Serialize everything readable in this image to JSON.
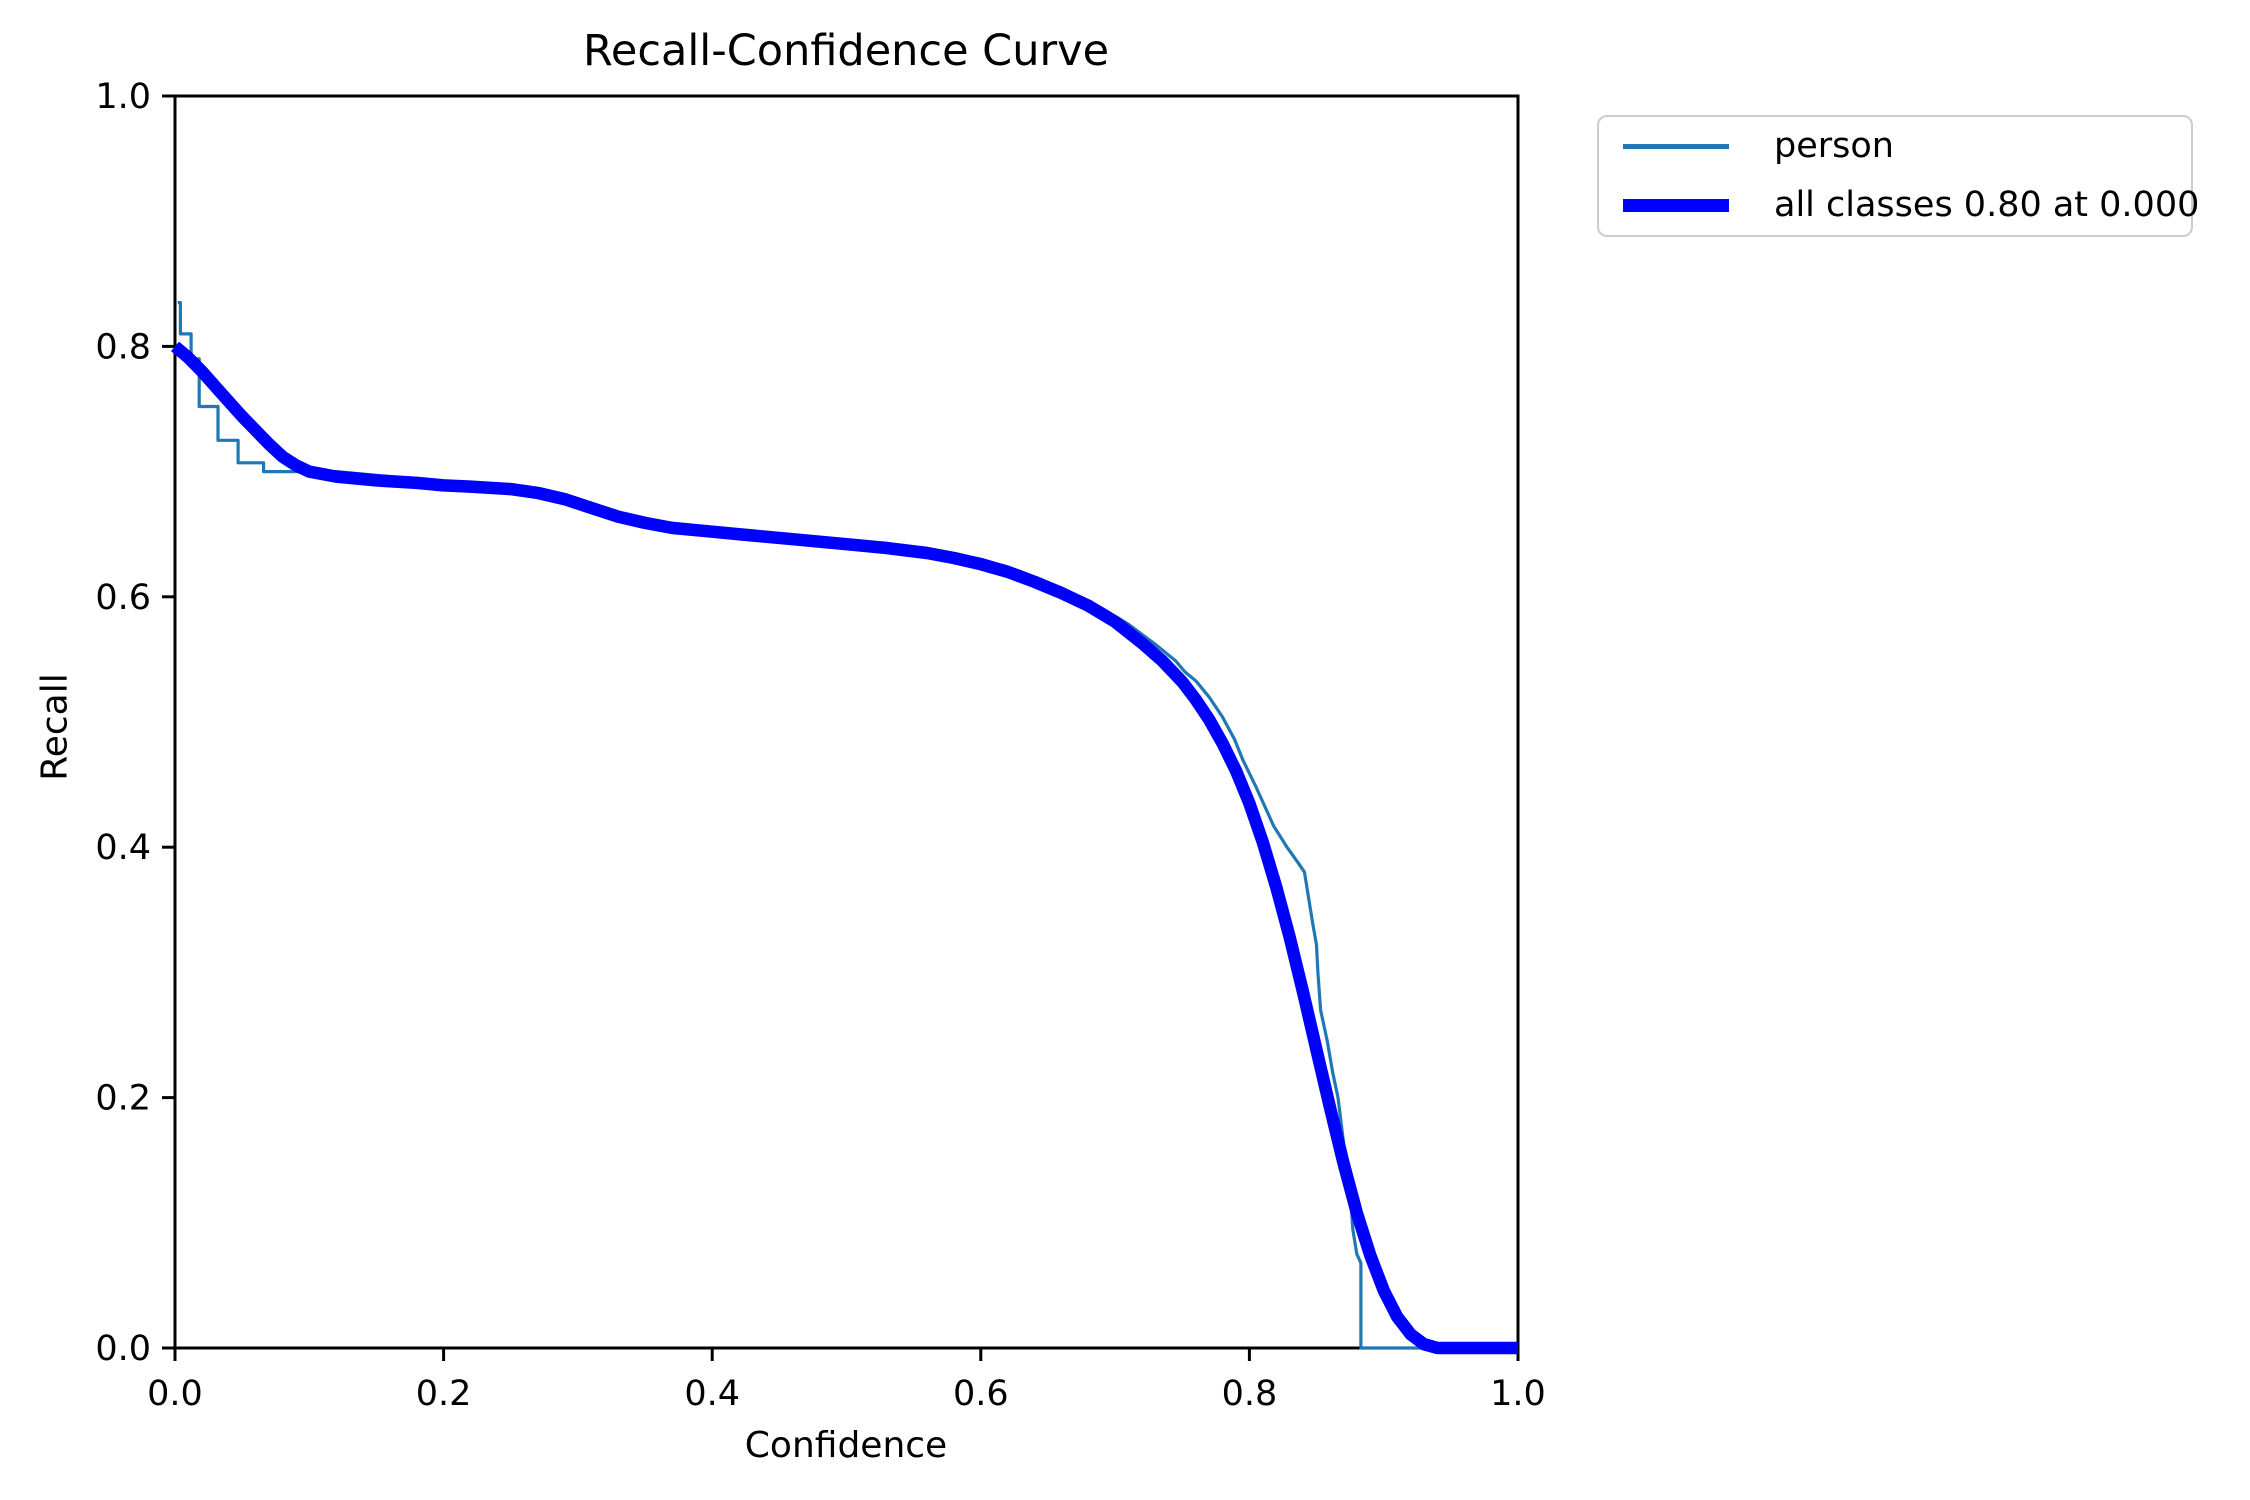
{
  "figure": {
    "title": "Recall-Confidence Curve",
    "xlabel": "Confidence",
    "ylabel": "Recall"
  },
  "chart_data": {
    "type": "line",
    "title": "Recall-Confidence Curve",
    "xlabel": "Confidence",
    "ylabel": "Recall",
    "xlim": [
      0.0,
      1.0
    ],
    "ylim": [
      0.0,
      1.0
    ],
    "x_ticks": [
      0.0,
      0.2,
      0.4,
      0.6,
      0.8,
      1.0
    ],
    "y_ticks": [
      0.0,
      0.2,
      0.4,
      0.6,
      0.8,
      1.0
    ],
    "grid": false,
    "legend_position": "outside upper right",
    "series": [
      {
        "name": "person",
        "color": "#1f77b4",
        "linewidth": "thin",
        "points": [
          [
            0.002,
            0.835
          ],
          [
            0.004,
            0.835
          ],
          [
            0.004,
            0.81
          ],
          [
            0.012,
            0.81
          ],
          [
            0.012,
            0.79
          ],
          [
            0.018,
            0.79
          ],
          [
            0.018,
            0.752
          ],
          [
            0.032,
            0.752
          ],
          [
            0.032,
            0.725
          ],
          [
            0.047,
            0.725
          ],
          [
            0.047,
            0.707
          ],
          [
            0.066,
            0.707
          ],
          [
            0.066,
            0.7
          ],
          [
            0.12,
            0.7
          ],
          [
            0.16,
            0.696
          ],
          [
            0.2,
            0.69
          ],
          [
            0.25,
            0.684
          ],
          [
            0.3,
            0.672
          ],
          [
            0.34,
            0.66
          ],
          [
            0.38,
            0.653
          ],
          [
            0.43,
            0.648
          ],
          [
            0.48,
            0.643
          ],
          [
            0.53,
            0.639
          ],
          [
            0.57,
            0.636
          ],
          [
            0.6,
            0.63
          ],
          [
            0.63,
            0.62
          ],
          [
            0.66,
            0.607
          ],
          [
            0.69,
            0.591
          ],
          [
            0.71,
            0.578
          ],
          [
            0.73,
            0.562
          ],
          [
            0.745,
            0.549
          ],
          [
            0.752,
            0.54
          ],
          [
            0.76,
            0.533
          ],
          [
            0.77,
            0.52
          ],
          [
            0.78,
            0.504
          ],
          [
            0.789,
            0.486
          ],
          [
            0.795,
            0.47
          ],
          [
            0.805,
            0.448
          ],
          [
            0.818,
            0.417
          ],
          [
            0.828,
            0.4
          ],
          [
            0.836,
            0.388
          ],
          [
            0.841,
            0.38
          ],
          [
            0.844,
            0.36
          ],
          [
            0.847,
            0.34
          ],
          [
            0.85,
            0.322
          ],
          [
            0.851,
            0.3
          ],
          [
            0.853,
            0.27
          ],
          [
            0.858,
            0.245
          ],
          [
            0.862,
            0.22
          ],
          [
            0.866,
            0.2
          ],
          [
            0.87,
            0.165
          ],
          [
            0.873,
            0.135
          ],
          [
            0.876,
            0.11
          ],
          [
            0.877,
            0.095
          ],
          [
            0.88,
            0.075
          ],
          [
            0.883,
            0.068
          ],
          [
            0.883,
            0.0
          ],
          [
            1.0,
            0.0
          ]
        ]
      },
      {
        "name": "all classes 0.80 at 0.000",
        "color": "#0000ff",
        "linewidth": "thick",
        "points": [
          [
            0.0,
            0.8
          ],
          [
            0.01,
            0.791
          ],
          [
            0.02,
            0.78
          ],
          [
            0.03,
            0.768
          ],
          [
            0.04,
            0.756
          ],
          [
            0.05,
            0.744
          ],
          [
            0.06,
            0.733
          ],
          [
            0.07,
            0.722
          ],
          [
            0.08,
            0.712
          ],
          [
            0.09,
            0.705
          ],
          [
            0.1,
            0.7
          ],
          [
            0.12,
            0.696
          ],
          [
            0.15,
            0.693
          ],
          [
            0.18,
            0.691
          ],
          [
            0.2,
            0.689
          ],
          [
            0.22,
            0.688
          ],
          [
            0.25,
            0.686
          ],
          [
            0.27,
            0.683
          ],
          [
            0.29,
            0.678
          ],
          [
            0.31,
            0.671
          ],
          [
            0.33,
            0.664
          ],
          [
            0.35,
            0.659
          ],
          [
            0.37,
            0.655
          ],
          [
            0.4,
            0.652
          ],
          [
            0.43,
            0.649
          ],
          [
            0.46,
            0.646
          ],
          [
            0.5,
            0.642
          ],
          [
            0.53,
            0.639
          ],
          [
            0.56,
            0.635
          ],
          [
            0.58,
            0.631
          ],
          [
            0.6,
            0.626
          ],
          [
            0.62,
            0.62
          ],
          [
            0.64,
            0.612
          ],
          [
            0.66,
            0.603
          ],
          [
            0.68,
            0.593
          ],
          [
            0.7,
            0.58
          ],
          [
            0.72,
            0.563
          ],
          [
            0.735,
            0.549
          ],
          [
            0.75,
            0.532
          ],
          [
            0.76,
            0.518
          ],
          [
            0.77,
            0.502
          ],
          [
            0.78,
            0.483
          ],
          [
            0.79,
            0.461
          ],
          [
            0.8,
            0.435
          ],
          [
            0.81,
            0.404
          ],
          [
            0.82,
            0.368
          ],
          [
            0.83,
            0.328
          ],
          [
            0.84,
            0.284
          ],
          [
            0.85,
            0.238
          ],
          [
            0.86,
            0.192
          ],
          [
            0.87,
            0.148
          ],
          [
            0.88,
            0.108
          ],
          [
            0.89,
            0.074
          ],
          [
            0.9,
            0.046
          ],
          [
            0.91,
            0.025
          ],
          [
            0.92,
            0.011
          ],
          [
            0.93,
            0.003
          ],
          [
            0.94,
            0.0
          ],
          [
            1.0,
            0.0
          ]
        ]
      }
    ]
  }
}
